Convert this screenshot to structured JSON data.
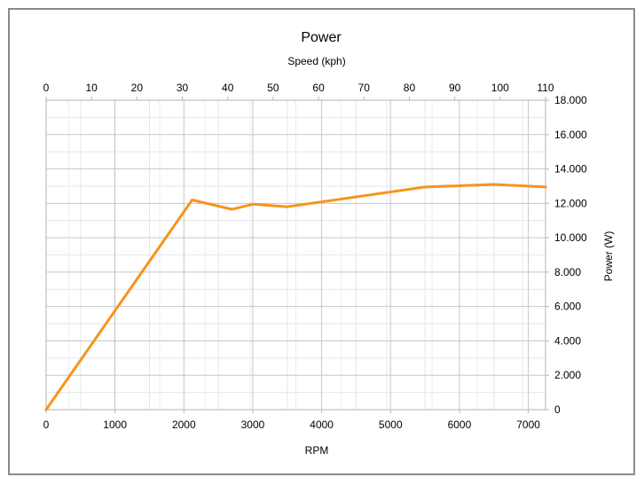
{
  "chart_data": {
    "type": "line",
    "title": "Power",
    "xlabel": "RPM",
    "x2label": "Speed (kph)",
    "ylabel": "Power (W)",
    "xlim": [
      0,
      7250
    ],
    "x2lim": [
      0,
      110
    ],
    "ylim": [
      0,
      18000
    ],
    "x_ticks": [
      0,
      1000,
      2000,
      3000,
      4000,
      5000,
      6000,
      7000
    ],
    "x_tick_labels": [
      "0",
      "1000",
      "2000",
      "3000",
      "4000",
      "5000",
      "6000",
      "7000"
    ],
    "x2_ticks": [
      0,
      10,
      20,
      30,
      40,
      50,
      60,
      70,
      80,
      90,
      100,
      110
    ],
    "x2_tick_labels": [
      "0",
      "10",
      "20",
      "30",
      "40",
      "50",
      "60",
      "70",
      "80",
      "90",
      "100",
      "110"
    ],
    "y_ticks": [
      0,
      2000,
      4000,
      6000,
      8000,
      10000,
      12000,
      14000,
      16000,
      18000
    ],
    "y_tick_labels": [
      "0",
      "2.000",
      "4.000",
      "6.000",
      "8.000",
      "10.000",
      "12.000",
      "14.000",
      "16.000",
      "18.000"
    ],
    "grid": true,
    "series_color": "#f7941d",
    "series": [
      {
        "x": [
          0,
          2120,
          2700,
          3000,
          3500,
          5500,
          6500,
          7250
        ],
        "y": [
          0,
          12200,
          11650,
          11950,
          11800,
          12950,
          13100,
          12950
        ]
      }
    ]
  }
}
